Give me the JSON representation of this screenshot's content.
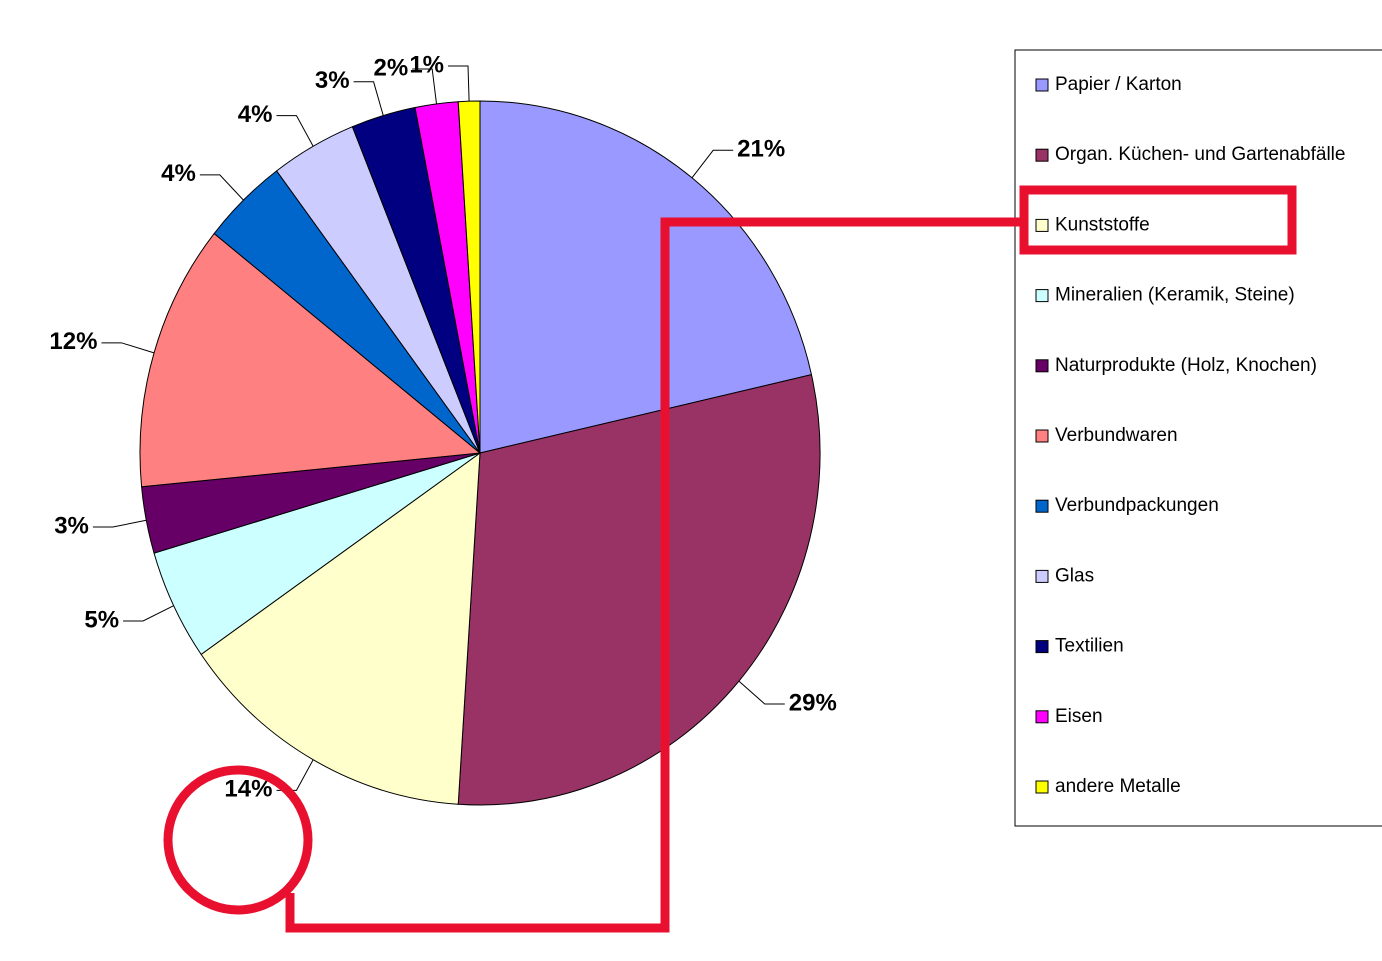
{
  "chart_data": {
    "type": "pie",
    "categories": [
      "Papier / Karton",
      "Organ. Küchen- und Gartenabfälle",
      "Kunststoffe",
      "Mineralien (Keramik, Steine)",
      "Naturprodukte (Holz, Knochen)",
      "Verbundwaren",
      "Verbundpackungen",
      "Glas",
      "Textilien",
      "Eisen",
      "andere Metalle"
    ],
    "values": [
      21,
      29,
      14,
      5,
      3,
      12,
      4,
      4,
      3,
      2,
      1
    ],
    "value_labels": [
      "21%",
      "29%",
      "14%",
      "5%",
      "3%",
      "12%",
      "4%",
      "4%",
      "3%",
      "2%",
      "1%"
    ],
    "colors": [
      "#9999ff",
      "#993366",
      "#ffffcc",
      "#ccffff",
      "#660066",
      "#ff8080",
      "#0066cc",
      "#ccccff",
      "#000080",
      "#ff00ff",
      "#ffff00"
    ],
    "legend": "right"
  }
}
